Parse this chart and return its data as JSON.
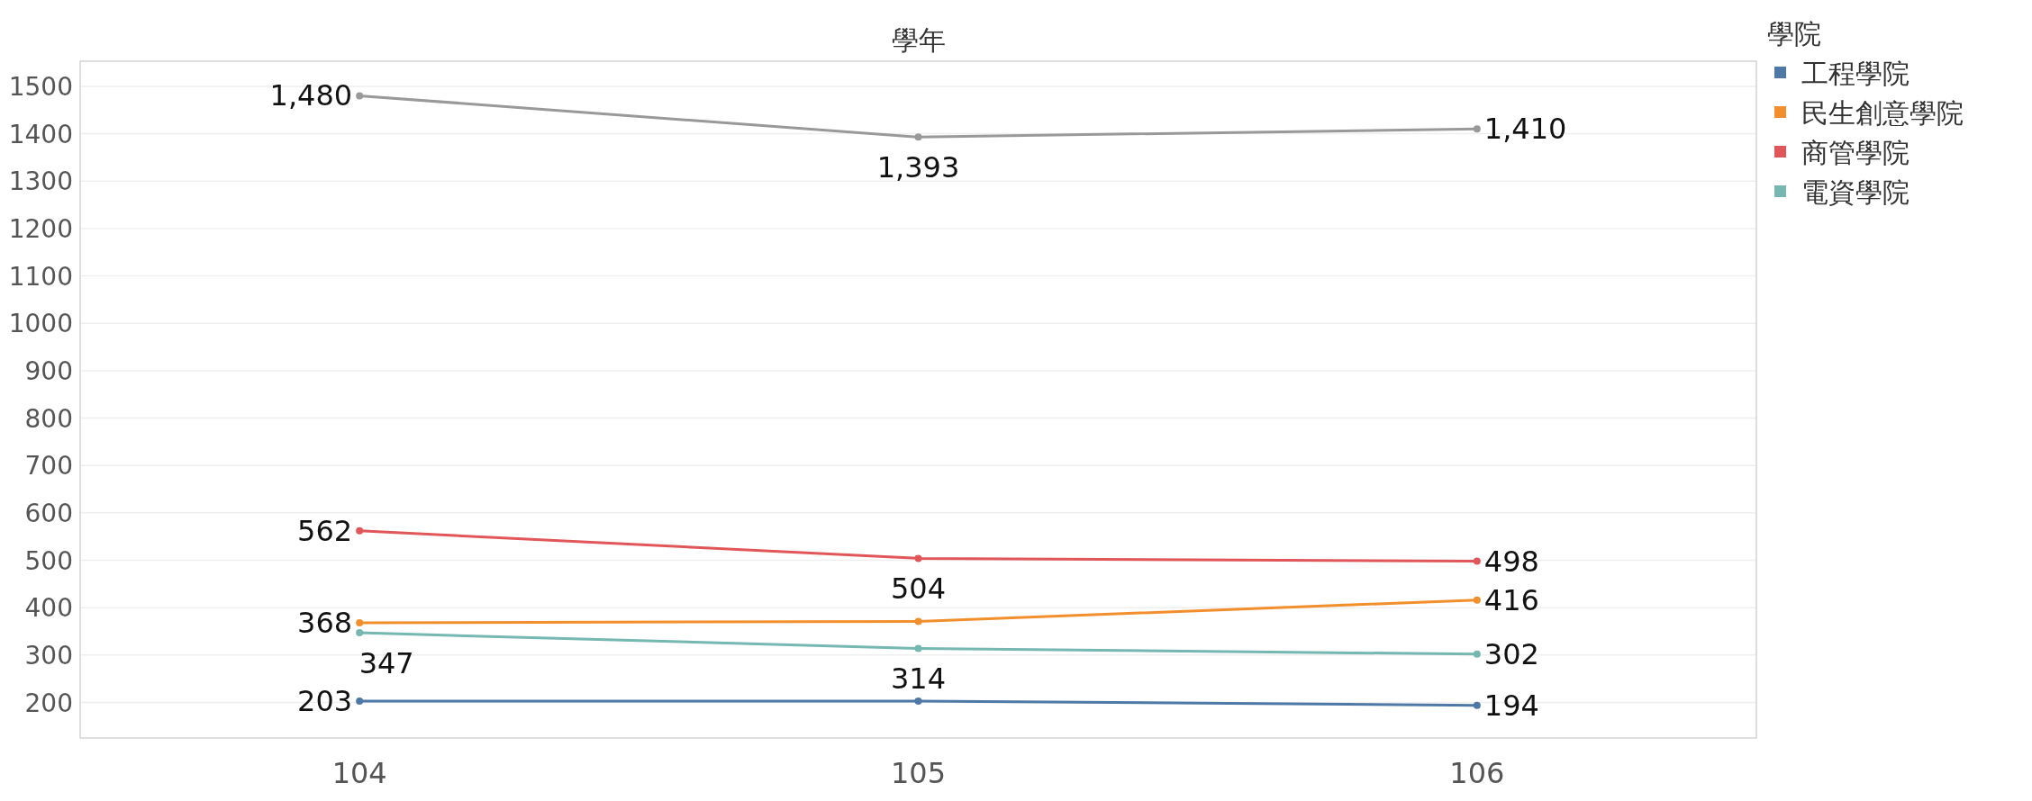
{
  "chart_data": {
    "type": "line",
    "xlabel": "學年",
    "legend_title": "學院",
    "categories": [
      "104",
      "105",
      "106"
    ],
    "series": [
      {
        "name": "工程學院",
        "color": "#4e79a7",
        "values": [
          203,
          203,
          194
        ],
        "value_labels": [
          "203",
          null,
          "194"
        ]
      },
      {
        "name": "民生創意學院",
        "color": "#f28e2b",
        "values": [
          368,
          371,
          416
        ],
        "value_labels": [
          "368",
          null,
          "416"
        ]
      },
      {
        "name": "商管學院",
        "color": "#e15759",
        "values": [
          562,
          504,
          498
        ],
        "value_labels": [
          "562",
          "504",
          "498"
        ]
      },
      {
        "name": "電資學院",
        "color": "#76b7b2",
        "values": [
          347,
          314,
          302
        ],
        "value_labels": [
          "347",
          "314",
          "302"
        ]
      },
      {
        "color": "#999999",
        "values": [
          1480,
          1393,
          1410
        ],
        "value_labels": [
          "1,480",
          "1,393",
          "1,410"
        ]
      }
    ],
    "ylim": [
      125,
      1553
    ],
    "yticks": [
      200,
      300,
      400,
      500,
      600,
      700,
      800,
      900,
      1000,
      1100,
      1200,
      1300,
      1400,
      1500
    ],
    "grid": "y",
    "legend": "top right",
    "marker": "circle",
    "line_style": "solid"
  }
}
